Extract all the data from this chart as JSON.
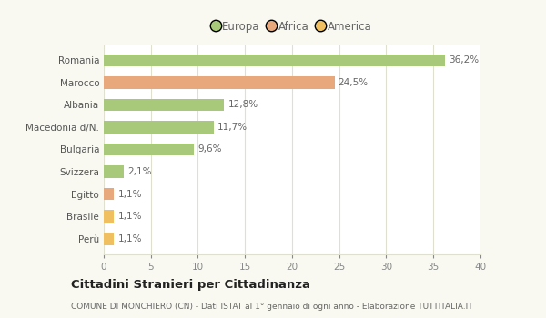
{
  "categories": [
    "Romania",
    "Marocco",
    "Albania",
    "Macedonia d/N.",
    "Bulgaria",
    "Svizzera",
    "Egitto",
    "Brasile",
    "Perù"
  ],
  "values": [
    36.2,
    24.5,
    12.8,
    11.7,
    9.6,
    2.1,
    1.1,
    1.1,
    1.1
  ],
  "labels": [
    "36,2%",
    "24,5%",
    "12,8%",
    "11,7%",
    "9,6%",
    "2,1%",
    "1,1%",
    "1,1%",
    "1,1%"
  ],
  "colors": [
    "#a8c87a",
    "#e8a87c",
    "#a8c87a",
    "#a8c87a",
    "#a8c87a",
    "#a8c87a",
    "#e8a87c",
    "#f0c060",
    "#f0c060"
  ],
  "legend": [
    {
      "label": "Europa",
      "color": "#a8c87a"
    },
    {
      "label": "Africa",
      "color": "#e8a87c"
    },
    {
      "label": "America",
      "color": "#f0c060"
    }
  ],
  "title": "Cittadini Stranieri per Cittadinanza",
  "subtitle": "COMUNE DI MONCHIERO (CN) - Dati ISTAT al 1° gennaio di ogni anno - Elaborazione TUTTITALIA.IT",
  "xlim": [
    0,
    40
  ],
  "xticks": [
    0,
    5,
    10,
    15,
    20,
    25,
    30,
    35,
    40
  ],
  "background_color": "#f9f9f2",
  "plot_bg_color": "#ffffff",
  "grid_color": "#e0e0d0",
  "bar_height": 0.55
}
